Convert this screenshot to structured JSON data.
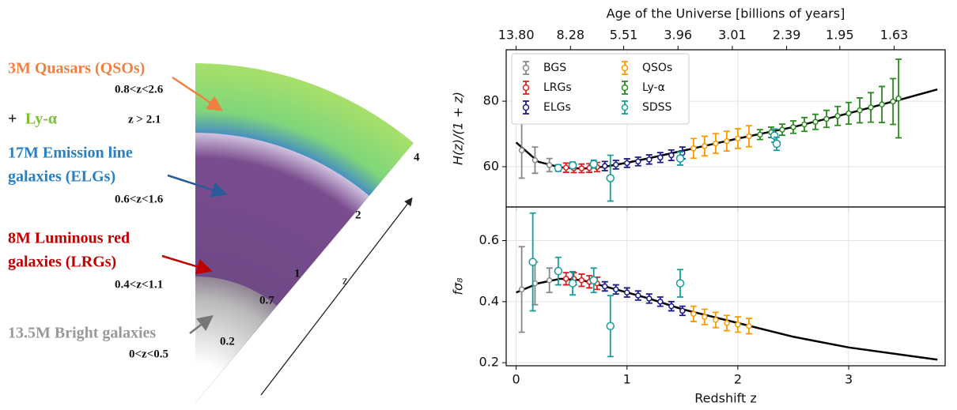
{
  "illustration": {
    "labels": [
      "3M Quasars (QSOs)",
      "0.8<z<2.6",
      "+",
      "Ly-α",
      "z > 2.1",
      "17M Emission line",
      "galaxies (ELGs)",
      "0.6<z<1.6",
      "8M Luminous red",
      "galaxies (LRGs)",
      "0.4<z<1.1",
      "13.5M Bright galaxies",
      "0<z<0.5"
    ],
    "redshift_marks": [
      "0.2",
      "0.7",
      "1",
      "2",
      "4"
    ],
    "axis_label": "z"
  },
  "chart_data": [
    {
      "type": "errorbar",
      "ylabel": "H(z)/(1 + z)",
      "x2label": "Age of the Universe [billions of years]",
      "xlim": [
        -0.09,
        3.87
      ],
      "xticks": [
        0,
        1,
        2,
        3
      ],
      "x2ticks": [
        {
          "value": 0,
          "label": "13.80"
        },
        {
          "value": 0.49,
          "label": "8.28"
        },
        {
          "value": 0.97,
          "label": "5.51"
        },
        {
          "value": 1.46,
          "label": "3.96"
        },
        {
          "value": 1.95,
          "label": "3.01"
        },
        {
          "value": 2.44,
          "label": "2.39"
        },
        {
          "value": 2.92,
          "label": "1.95"
        },
        {
          "value": 3.41,
          "label": "1.63"
        }
      ],
      "ylim": [
        47.7,
        95.7
      ],
      "yticks": [
        60,
        80
      ],
      "grid": true,
      "legend": "upper left",
      "series": [
        {
          "type": "line",
          "color": "#000000",
          "x": [
            0,
            0.2,
            0.4,
            0.6,
            0.8,
            1.0,
            1.2,
            1.4,
            1.6,
            1.8,
            2.0,
            2.2,
            2.5,
            3.0,
            3.5,
            3.8
          ],
          "values": [
            67.4,
            61.5,
            59.8,
            59.4,
            60.0,
            61.2,
            62.6,
            64.1,
            65.6,
            67.1,
            68.6,
            70.0,
            72.1,
            76.3,
            80.8,
            83.6
          ]
        },
        {
          "name": "BGS",
          "color": "#888888",
          "x": [
            0.05,
            0.17,
            0.3
          ],
          "values": [
            65,
            62,
            60.5
          ],
          "errors": [
            8.5,
            4,
            2
          ]
        },
        {
          "name": "LRGs",
          "color": "#e41a1c",
          "x": [
            0.45,
            0.52,
            0.59,
            0.66,
            0.73
          ],
          "values": [
            59.7,
            59.5,
            59.5,
            59.6,
            59.9
          ],
          "errors": [
            1.4,
            1.3,
            1.3,
            1.3,
            1.4
          ]
        },
        {
          "name": "ELGs",
          "color": "#1a1a8c",
          "x": [
            0.8,
            0.9,
            1.0,
            1.1,
            1.2,
            1.3,
            1.4,
            1.5
          ],
          "values": [
            60.2,
            60.6,
            61.1,
            61.6,
            62.2,
            62.8,
            63.5,
            64.2
          ],
          "errors": [
            1.4,
            1.3,
            1.3,
            1.3,
            1.4,
            1.5,
            1.6,
            1.8
          ]
        },
        {
          "name": "QSOs",
          "color": "#ff9900",
          "x": [
            1.6,
            1.7,
            1.8,
            1.9,
            2.0,
            2.1
          ],
          "values": [
            65.6,
            66.3,
            67.1,
            67.8,
            68.6,
            69.3
          ],
          "errors": [
            3,
            3,
            3,
            3,
            3,
            3.2
          ]
        },
        {
          "name": "Ly-α",
          "color": "#2a8a1f",
          "x": [
            2.2,
            2.3,
            2.4,
            2.5,
            2.6,
            2.7,
            2.8,
            2.9,
            3.0,
            3.1,
            3.2,
            3.3,
            3.4,
            3.45
          ],
          "values": [
            69.8,
            70.5,
            71.3,
            72.1,
            72.9,
            73.7,
            74.6,
            75.5,
            76.3,
            77.2,
            78.1,
            79.0,
            79.9,
            80.8
          ],
          "errors": [
            1.5,
            1.6,
            1.7,
            1.9,
            2.1,
            2.3,
            2.6,
            2.9,
            3.3,
            3.8,
            4.5,
            5.5,
            7,
            12
          ]
        },
        {
          "name": "SDSS",
          "color": "#179c9c",
          "x": [
            0.38,
            0.51,
            0.7,
            0.85,
            1.48,
            2.33,
            2.35
          ],
          "values": [
            59.6,
            60.4,
            60.8,
            56.5,
            62.5,
            69.5,
            67
          ],
          "errors": [
            1,
            1,
            1.2,
            7,
            2,
            2,
            2
          ]
        }
      ]
    },
    {
      "type": "errorbar",
      "ylabel": "fσ₈",
      "xlabel": "Redshift z",
      "xlim": [
        -0.09,
        3.87
      ],
      "xticks": [
        0,
        1,
        2,
        3
      ],
      "ylim": [
        0.19,
        0.71
      ],
      "yticks": [
        0.2,
        0.4,
        0.6
      ],
      "grid": true,
      "series": [
        {
          "type": "line",
          "color": "#000000",
          "x": [
            0,
            0.2,
            0.4,
            0.6,
            0.8,
            1.0,
            1.2,
            1.5,
            2.0,
            2.5,
            3.0,
            3.5,
            3.8
          ],
          "values": [
            0.43,
            0.46,
            0.475,
            0.47,
            0.45,
            0.43,
            0.41,
            0.375,
            0.33,
            0.285,
            0.25,
            0.225,
            0.21
          ]
        },
        {
          "color": "#888888",
          "x": [
            0.05,
            0.17,
            0.3
          ],
          "values": [
            0.44,
            0.46,
            0.47
          ],
          "errors": [
            0.14,
            0.07,
            0.04
          ]
        },
        {
          "color": "#e41a1c",
          "x": [
            0.45,
            0.52,
            0.59,
            0.66,
            0.73
          ],
          "values": [
            0.475,
            0.475,
            0.47,
            0.465,
            0.46
          ],
          "errors": [
            0.02,
            0.02,
            0.02,
            0.02,
            0.02
          ]
        },
        {
          "color": "#1a1a8c",
          "x": [
            0.8,
            0.9,
            1.0,
            1.1,
            1.2,
            1.3,
            1.4,
            1.5
          ],
          "values": [
            0.45,
            0.44,
            0.43,
            0.42,
            0.41,
            0.4,
            0.385,
            0.37
          ],
          "errors": [
            0.015,
            0.015,
            0.015,
            0.015,
            0.015,
            0.015,
            0.015,
            0.015
          ]
        },
        {
          "color": "#ff9900",
          "x": [
            1.6,
            1.7,
            1.8,
            1.9,
            2.0,
            2.1
          ],
          "values": [
            0.36,
            0.35,
            0.34,
            0.33,
            0.325,
            0.32
          ],
          "errors": [
            0.025,
            0.025,
            0.025,
            0.025,
            0.025,
            0.025
          ]
        },
        {
          "color": "#179c9c",
          "x": [
            0.15,
            0.38,
            0.51,
            0.7,
            0.85,
            1.48
          ],
          "values": [
            0.53,
            0.5,
            0.46,
            0.47,
            0.32,
            0.46
          ],
          "errors": [
            0.16,
            0.045,
            0.038,
            0.04,
            0.1,
            0.045
          ]
        }
      ]
    }
  ]
}
